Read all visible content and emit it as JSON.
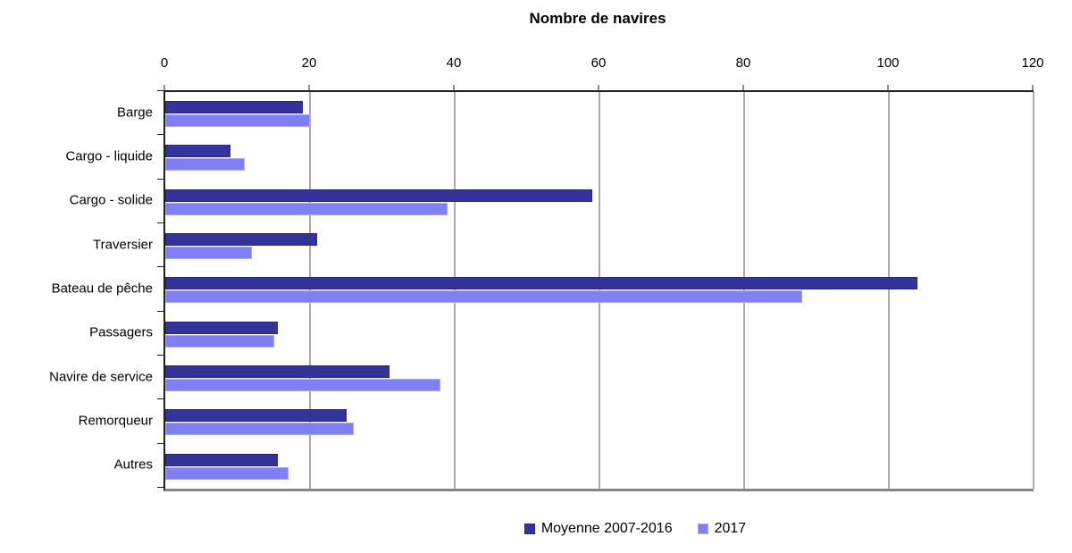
{
  "chart_data": {
    "type": "bar",
    "orientation": "horizontal",
    "title": "Nombre de navires",
    "categories": [
      "Barge",
      "Cargo - liquide",
      "Cargo - solide",
      "Traversier",
      "Bateau de pêche",
      "Passagers",
      "Navire de service",
      "Remorqueur",
      "Autres"
    ],
    "series": [
      {
        "name": "Moyenne 2007-2016",
        "color": "#333399",
        "border_color": "#26267a",
        "values": [
          19,
          9,
          59,
          21,
          104,
          15.5,
          31,
          25,
          15.5
        ]
      },
      {
        "name": "2017",
        "color": "#8080f5",
        "border_color": "#a9a9f9",
        "values": [
          20,
          11,
          39,
          12,
          88,
          15,
          38,
          26,
          17
        ]
      }
    ],
    "xlabel": "Nombre de navires",
    "ylabel": "",
    "x_ticks": [
      0,
      20,
      40,
      60,
      80,
      100,
      120
    ],
    "xlim": [
      0,
      120
    ],
    "grid": "vertical-gridlines-every-20",
    "legend_position": "bottom",
    "colors": {
      "axis_line": "#1f1f1f",
      "bottom_axis_line": "#868686",
      "gridline": "#565656",
      "background": "#ffffff",
      "text": "#000000"
    }
  }
}
